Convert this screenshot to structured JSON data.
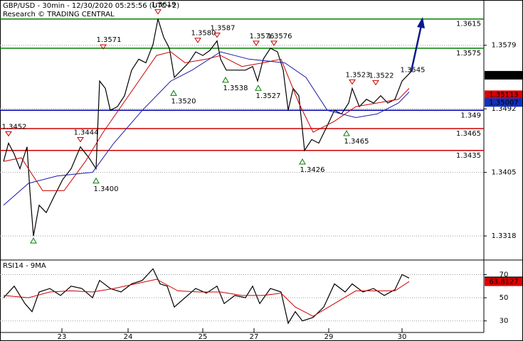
{
  "chart_data": [
    {
      "type": "line",
      "title": "GBP/USD - 30min - 12/30/2020 05:25:56 (UTC+2)",
      "subtitle": "Research © TRADING CENTRAL",
      "xlim": [
        0,
        136
      ],
      "ylim": [
        1.3286,
        1.3641
      ],
      "yticks": [
        1.3579,
        1.3492,
        1.3405,
        1.3318
      ],
      "grid": true,
      "series": [
        {
          "color": "#000000",
          "x": [
            1,
            2.4,
            4,
            5.6,
            7.6,
            8.4,
            9.4,
            11,
            13,
            15,
            17.6,
            20,
            22.6,
            25,
            27,
            28,
            29.6,
            31,
            33,
            35,
            37,
            39,
            41,
            43,
            44.4,
            46,
            47.6,
            49,
            51,
            53,
            55,
            57,
            59,
            61,
            62,
            63.6,
            66,
            69,
            71,
            72.4,
            74,
            76,
            78,
            79.6,
            81,
            82.4,
            84,
            85.6,
            87.6,
            89.6,
            91.6,
            94,
            96,
            98,
            99,
            101,
            103,
            105,
            107,
            109,
            111,
            113,
            115,
            116
          ],
          "values": [
            1.342,
            1.3445,
            1.343,
            1.341,
            1.344,
            1.338,
            1.3318,
            1.336,
            1.335,
            1.337,
            1.3395,
            1.341,
            1.344,
            1.3425,
            1.341,
            1.353,
            1.352,
            1.349,
            1.3495,
            1.351,
            1.3545,
            1.356,
            1.3555,
            1.358,
            1.3615,
            1.359,
            1.3575,
            1.3535,
            1.3545,
            1.3555,
            1.357,
            1.3565,
            1.3572,
            1.3585,
            1.356,
            1.3545,
            1.3545,
            1.3545,
            1.355,
            1.353,
            1.356,
            1.3575,
            1.357,
            1.3545,
            1.349,
            1.352,
            1.351,
            1.3435,
            1.345,
            1.3445,
            1.3465,
            1.349,
            1.3485,
            1.35,
            1.352,
            1.3495,
            1.3505,
            1.35,
            1.351,
            1.35,
            1.3505,
            1.353,
            1.354,
            1.3545
          ]
        },
        {
          "color": "#cc0000",
          "x": [
            1,
            6,
            12,
            18,
            24,
            29,
            34,
            39,
            44,
            48,
            52,
            58,
            62,
            68,
            74,
            79,
            84,
            88,
            94,
            100,
            106,
            112,
            115
          ],
          "values": [
            1.342,
            1.3425,
            1.338,
            1.338,
            1.342,
            1.346,
            1.3495,
            1.353,
            1.3565,
            1.357,
            1.3555,
            1.356,
            1.3565,
            1.355,
            1.3555,
            1.356,
            1.35,
            1.346,
            1.3475,
            1.3495,
            1.35,
            1.3505,
            1.352
          ]
        },
        {
          "color": "#1a1aa6",
          "x": [
            1,
            8,
            16,
            26,
            32,
            40,
            48,
            54,
            62,
            70,
            80,
            86,
            92,
            100,
            106,
            112,
            115
          ],
          "values": [
            1.336,
            1.339,
            1.34,
            1.3405,
            1.3445,
            1.349,
            1.353,
            1.3545,
            1.357,
            1.356,
            1.3555,
            1.3535,
            1.349,
            1.348,
            1.3485,
            1.35,
            1.3515
          ]
        }
      ],
      "levels": [
        {
          "value": 1.3615,
          "color": "#008000"
        },
        {
          "value": 1.3575,
          "color": "#008000"
        },
        {
          "value": 1.349,
          "color": "#0000b0"
        },
        {
          "value": 1.3465,
          "color": "#cc0000"
        },
        {
          "value": 1.3435,
          "color": "#cc0000"
        }
      ],
      "price_boxes": [
        {
          "value": 1.3538,
          "color": "#000000"
        },
        {
          "value": 1.35113,
          "color": "#dd0000"
        },
        {
          "value": 1.35007,
          "color": "#1030c0"
        }
      ],
      "annotations": [
        {
          "x": 2.4,
          "price": 1.3452,
          "label": "1.3452",
          "kind": "high"
        },
        {
          "x": 9.4,
          "price": 1.3318,
          "kind": "low"
        },
        {
          "x": 22.6,
          "price": 1.3444,
          "label": "1.3444",
          "kind": "high"
        },
        {
          "x": 27,
          "price": 1.34,
          "label": "1.3400",
          "kind": "low"
        },
        {
          "x": 29,
          "price": 1.3571,
          "label": "1.3571",
          "kind": "high"
        },
        {
          "x": 44.4,
          "price": 1.3619,
          "label": "1.3619",
          "kind": "high"
        },
        {
          "x": 48.8,
          "price": 1.352,
          "label": "1.3520",
          "kind": "low"
        },
        {
          "x": 55.6,
          "price": 1.358,
          "label": "1.3580",
          "kind": "high"
        },
        {
          "x": 61,
          "price": 1.3587,
          "label": "1.3587",
          "kind": "high"
        },
        {
          "x": 63.4,
          "price": 1.3538,
          "label": "1.3538",
          "kind": "low"
        },
        {
          "x": 72,
          "price": 1.3576,
          "label": "1.3576",
          "kind": "high"
        },
        {
          "x": 72.6,
          "price": 1.3527,
          "label": "1.3527",
          "kind": "low"
        },
        {
          "x": 77,
          "price": 1.3576,
          "label": "1.3576",
          "kind": "high"
        },
        {
          "x": 85,
          "price": 1.3426,
          "label": "1.3426",
          "kind": "low"
        },
        {
          "x": 97.4,
          "price": 1.3465,
          "label": "1.3465",
          "kind": "low"
        },
        {
          "x": 99,
          "price": 1.3523,
          "label": "1.3523",
          "kind": "high"
        },
        {
          "x": 105.6,
          "price": 1.3522,
          "label": "1.3522",
          "kind": "high"
        },
        {
          "x": 116,
          "price": 1.3545,
          "label": "1.3545",
          "kind": "label"
        }
      ]
    },
    {
      "type": "line",
      "title": "RSI14 - 9MA",
      "xlim": [
        0,
        136
      ],
      "xticks": [
        {
          "value": 17.4,
          "label": "23"
        },
        {
          "value": 36,
          "label": "24"
        },
        {
          "value": 57,
          "label": "25"
        },
        {
          "value": 71.4,
          "label": "27"
        },
        {
          "value": 92.4,
          "label": "29"
        },
        {
          "value": 113,
          "label": "30"
        }
      ],
      "ylim": [
        20,
        82
      ],
      "yticks": [
        30,
        50,
        70
      ],
      "grid": true,
      "series": [
        {
          "color": "#000000",
          "x": [
            1,
            4,
            7,
            9,
            11,
            14,
            17,
            20,
            23,
            26,
            28,
            31,
            34,
            37,
            40,
            43,
            45,
            47,
            49,
            52,
            55,
            58,
            61,
            63,
            66,
            69,
            71,
            73,
            76,
            79,
            81,
            83,
            85,
            88,
            91,
            94,
            97,
            99,
            102,
            105,
            108,
            111,
            113,
            115
          ],
          "values": [
            50,
            60,
            45,
            38,
            55,
            58,
            52,
            60,
            58,
            50,
            65,
            58,
            55,
            62,
            65,
            75,
            62,
            60,
            42,
            50,
            58,
            54,
            60,
            45,
            52,
            50,
            60,
            45,
            58,
            55,
            28,
            38,
            30,
            33,
            42,
            62,
            55,
            62,
            55,
            58,
            52,
            57,
            70,
            67
          ]
        },
        {
          "color": "#cc0000",
          "x": [
            1,
            8,
            14,
            20,
            26,
            32,
            38,
            44,
            50,
            56,
            62,
            68,
            74,
            79,
            83,
            88,
            94,
            100,
            106,
            111,
            115
          ],
          "values": [
            52,
            50,
            55,
            56,
            55,
            58,
            62,
            66,
            56,
            55,
            55,
            52,
            52,
            54,
            42,
            34,
            45,
            56,
            56,
            56,
            64
          ]
        }
      ],
      "price_boxes": [
        {
          "value": 64.554,
          "color": "#000000"
        },
        {
          "value": 63.8127,
          "color": "#dd0000"
        }
      ]
    }
  ]
}
